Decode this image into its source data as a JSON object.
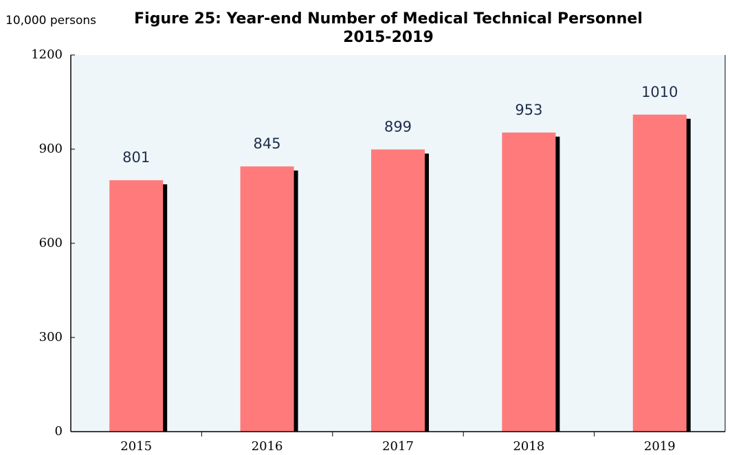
{
  "chart_data": {
    "type": "bar",
    "title": "Figure 25: Year-end Number of Medical Technical Personnel 2015-2019",
    "y_axis_label": "10,000 persons",
    "categories": [
      "2015",
      "2016",
      "2017",
      "2018",
      "2019"
    ],
    "values": [
      801,
      845,
      899,
      953,
      1010
    ],
    "color": "#ff7b7b",
    "shadow_color": "#000000",
    "background": "#eef6f9",
    "ylim": [
      0,
      1200
    ],
    "yticks": [
      0,
      300,
      600,
      900,
      1200
    ],
    "grid": false
  }
}
